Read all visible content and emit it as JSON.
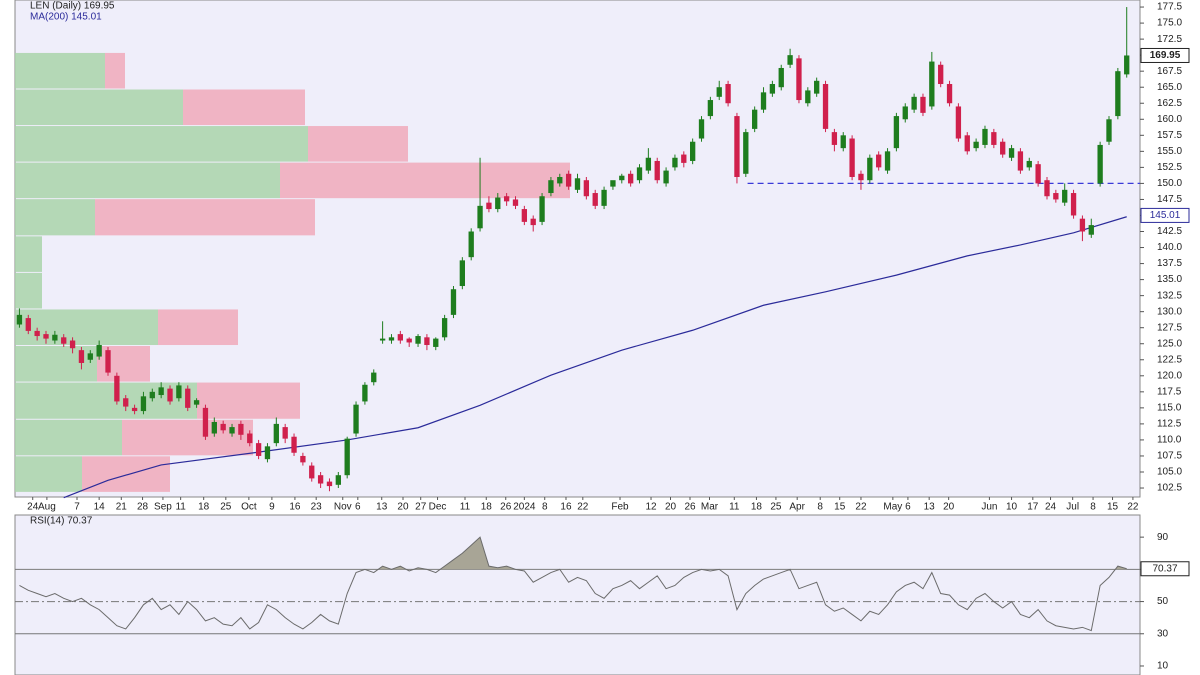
{
  "chart_data": [
    {
      "type": "candlestick",
      "title": "LEN (Daily) 169.95",
      "xlim": [
        0,
        127
      ],
      "ylim": [
        101.1,
        178.6
      ],
      "xticks": [
        {
          "value": 2.0,
          "label": "24"
        },
        {
          "value": 3.6,
          "label": "Aug"
        },
        {
          "value": 7.0,
          "label": "7"
        },
        {
          "value": 9.5,
          "label": "14"
        },
        {
          "value": 12.0,
          "label": "21"
        },
        {
          "value": 14.4,
          "label": "28"
        },
        {
          "value": 16.7,
          "label": "Sep"
        },
        {
          "value": 18.7,
          "label": "11"
        },
        {
          "value": 21.3,
          "label": "18"
        },
        {
          "value": 23.8,
          "label": "25"
        },
        {
          "value": 26.4,
          "label": "Oct"
        },
        {
          "value": 29.0,
          "label": "9"
        },
        {
          "value": 31.6,
          "label": "16"
        },
        {
          "value": 34.0,
          "label": "23"
        },
        {
          "value": 37.0,
          "label": "Nov"
        },
        {
          "value": 38.7,
          "label": "6"
        },
        {
          "value": 41.4,
          "label": "13"
        },
        {
          "value": 43.8,
          "label": "20"
        },
        {
          "value": 45.8,
          "label": "27"
        },
        {
          "value": 47.7,
          "label": "Dec"
        },
        {
          "value": 50.8,
          "label": "11"
        },
        {
          "value": 53.2,
          "label": "18"
        },
        {
          "value": 55.4,
          "label": "26"
        },
        {
          "value": 57.5,
          "label": "2024"
        },
        {
          "value": 59.8,
          "label": "8"
        },
        {
          "value": 62.2,
          "label": "16"
        },
        {
          "value": 64.1,
          "label": "22"
        },
        {
          "value": 68.3,
          "label": "Feb"
        },
        {
          "value": 71.8,
          "label": "12"
        },
        {
          "value": 74.0,
          "label": "20"
        },
        {
          "value": 76.2,
          "label": "26"
        },
        {
          "value": 78.4,
          "label": "Mar"
        },
        {
          "value": 81.2,
          "label": "11"
        },
        {
          "value": 83.7,
          "label": "18"
        },
        {
          "value": 85.9,
          "label": "25"
        },
        {
          "value": 88.3,
          "label": "Apr"
        },
        {
          "value": 90.9,
          "label": "8"
        },
        {
          "value": 93.1,
          "label": "15"
        },
        {
          "value": 95.5,
          "label": "22"
        },
        {
          "value": 99.1,
          "label": "May"
        },
        {
          "value": 100.8,
          "label": "6"
        },
        {
          "value": 103.2,
          "label": "13"
        },
        {
          "value": 105.4,
          "label": "20"
        },
        {
          "value": 110.0,
          "label": "Jun"
        },
        {
          "value": 112.5,
          "label": "10"
        },
        {
          "value": 114.9,
          "label": "17"
        },
        {
          "value": 116.9,
          "label": "24"
        },
        {
          "value": 119.4,
          "label": "Jul"
        },
        {
          "value": 121.7,
          "label": "8"
        },
        {
          "value": 123.9,
          "label": "15"
        },
        {
          "value": 126.2,
          "label": "22"
        }
      ],
      "yticks": [
        102.5,
        {
          "value": 105,
          "label": "105.0"
        },
        107.5,
        {
          "value": 110,
          "label": "110.0"
        },
        112.5,
        {
          "value": 115,
          "label": "115.0"
        },
        117.5,
        {
          "value": 120,
          "label": "120.0"
        },
        122.5,
        {
          "value": 125,
          "label": "125.0"
        },
        127.5,
        {
          "value": 130,
          "label": "130.0"
        },
        132.5,
        {
          "value": 135,
          "label": "135.0"
        },
        137.5,
        {
          "value": 140,
          "label": "140.0"
        },
        142.5,
        {
          "value": 145,
          "label": "145.0"
        },
        147.5,
        {
          "value": 150,
          "label": "150.0"
        },
        152.5,
        {
          "value": 155,
          "label": "155.0"
        },
        157.5,
        {
          "value": 160,
          "label": "160.0"
        },
        162.5,
        {
          "value": 165,
          "label": "165.0"
        },
        167.5,
        {
          "value": 170,
          "label": "170.0"
        },
        172.5,
        {
          "value": 175,
          "label": "175.0"
        },
        177.5
      ],
      "up_color": "#1e7d1e",
      "down_color": "#d0204c",
      "open": [
        128.0,
        129.0,
        127.0,
        126.5,
        125.5,
        126.0,
        125.5,
        124.0,
        122.5,
        123.0,
        124.0,
        120.0,
        116.5,
        115.0,
        114.5,
        116.5,
        117.0,
        118.0,
        116.5,
        118.0,
        115.5,
        115.0,
        111.0,
        112.5,
        111.0,
        112.5,
        111.0,
        109.5,
        107.0,
        109.5,
        112.0,
        110.5,
        107.5,
        106.0,
        104.5,
        103.5,
        103.0,
        104.5,
        111.0,
        116.0,
        119.0,
        125.5,
        125.5,
        126.5,
        125.8,
        125.0,
        126.0,
        124.5,
        126.0,
        129.5,
        134.0,
        138.5,
        143.0,
        147.0,
        146.0,
        148.0,
        147.5,
        146.0,
        144.5,
        144.0,
        148.5,
        150.0,
        151.5,
        149.0,
        150.5,
        148.5,
        146.5,
        149.5,
        150.5,
        151.5,
        150.5,
        152.0,
        153.5,
        150.0,
        152.5,
        154.5,
        153.5,
        157.0,
        160.5,
        163.5,
        165.5,
        160.5,
        151.5,
        158.5,
        161.5,
        164.0,
        165.0,
        168.5,
        169.5,
        162.5,
        164.0,
        165.5,
        158.0,
        155.5,
        157.0,
        151.5,
        150.5,
        154.5,
        152.0,
        155.5,
        160.0,
        161.5,
        163.5,
        162.0,
        168.5,
        165.5,
        162.0,
        157.5,
        155.5,
        156.0,
        158.0,
        156.5,
        154.0,
        155.0,
        152.5,
        153.0,
        150.5,
        148.5,
        147.0,
        148.5,
        144.5,
        142.0,
        150.0,
        156.5,
        160.5,
        167.0
      ],
      "high": [
        130.5,
        129.5,
        127.5,
        127.0,
        127.0,
        126.5,
        126.0,
        124.5,
        124.0,
        125.5,
        124.5,
        120.5,
        117.0,
        115.5,
        117.5,
        118.0,
        119.0,
        118.5,
        119.0,
        118.5,
        116.5,
        115.5,
        113.5,
        113.0,
        112.5,
        113.0,
        111.5,
        110.0,
        109.5,
        113.5,
        112.5,
        111.0,
        108.0,
        106.5,
        105.0,
        104.0,
        105.0,
        110.5,
        116.0,
        119.0,
        121.0,
        128.5,
        126.5,
        127.0,
        126.0,
        126.5,
        126.5,
        126.0,
        129.5,
        134.0,
        138.5,
        143.0,
        154.0,
        148.0,
        148.5,
        148.5,
        148.0,
        146.5,
        145.0,
        148.5,
        151.0,
        151.5,
        152.0,
        151.5,
        151.0,
        149.0,
        149.5,
        150.0,
        151.5,
        152.0,
        153.0,
        155.5,
        154.0,
        152.5,
        154.5,
        155.0,
        157.0,
        160.5,
        163.5,
        166.0,
        166.0,
        161.0,
        158.5,
        162.0,
        165.0,
        166.0,
        168.5,
        171.0,
        170.0,
        165.0,
        166.5,
        166.0,
        158.5,
        158.0,
        157.5,
        152.0,
        154.5,
        155.0,
        155.5,
        161.0,
        162.5,
        164.0,
        164.0,
        170.5,
        169.0,
        166.0,
        162.5,
        158.0,
        157.0,
        159.0,
        158.5,
        157.0,
        156.0,
        155.5,
        154.0,
        153.5,
        151.0,
        149.0,
        150.0,
        149.0,
        145.0,
        144.5,
        156.5,
        160.5,
        168.0,
        177.5
      ],
      "low": [
        127.5,
        126.5,
        125.5,
        125.0,
        125.0,
        124.5,
        123.5,
        121.0,
        122.0,
        122.5,
        120.0,
        115.5,
        114.5,
        114.0,
        114.0,
        116.0,
        116.5,
        115.5,
        116.0,
        114.5,
        115.0,
        110.0,
        110.5,
        111.0,
        110.5,
        110.0,
        109.0,
        107.0,
        106.5,
        109.0,
        109.5,
        107.5,
        106.0,
        103.5,
        102.5,
        102.0,
        102.5,
        104.0,
        110.5,
        115.5,
        118.5,
        125.0,
        125.0,
        125.0,
        124.5,
        124.5,
        124.0,
        124.0,
        125.5,
        129.0,
        133.5,
        138.0,
        142.5,
        145.5,
        145.5,
        146.5,
        146.0,
        143.5,
        142.5,
        143.5,
        148.0,
        149.5,
        149.0,
        148.5,
        147.5,
        146.0,
        146.0,
        149.0,
        150.0,
        149.5,
        150.0,
        151.5,
        150.0,
        149.5,
        152.0,
        152.5,
        153.0,
        156.5,
        160.0,
        163.0,
        162.0,
        150.0,
        151.0,
        158.0,
        161.0,
        163.5,
        164.5,
        168.0,
        162.5,
        162.0,
        163.5,
        158.0,
        155.0,
        155.0,
        150.5,
        149.0,
        150.0,
        152.0,
        151.5,
        155.0,
        159.5,
        161.0,
        160.5,
        161.5,
        165.0,
        162.0,
        156.5,
        154.5,
        155.0,
        155.5,
        155.5,
        154.0,
        153.5,
        151.5,
        152.0,
        149.5,
        147.5,
        147.0,
        146.5,
        144.5,
        141.0,
        141.5,
        149.5,
        156.0,
        160.0,
        166.5
      ],
      "close": [
        129.5,
        127.0,
        126.2,
        125.8,
        126.4,
        125.0,
        124.3,
        122.0,
        123.5,
        124.8,
        120.5,
        116.0,
        115.2,
        114.5,
        116.8,
        117.5,
        118.2,
        116.0,
        118.5,
        115.0,
        116.2,
        110.5,
        112.8,
        111.5,
        112.0,
        110.8,
        109.5,
        107.5,
        109.0,
        112.5,
        110.2,
        108.0,
        106.5,
        104.0,
        103.2,
        102.8,
        104.5,
        110.2,
        115.5,
        118.6,
        120.5,
        125.8,
        126.0,
        125.5,
        125.2,
        126.2,
        124.8,
        125.8,
        129.0,
        133.5,
        138.0,
        142.5,
        146.5,
        146.0,
        147.8,
        147.2,
        146.5,
        144.0,
        143.5,
        148.0,
        150.5,
        151.0,
        149.5,
        150.8,
        148.0,
        146.5,
        149.0,
        150.5,
        151.2,
        150.0,
        152.5,
        154.0,
        150.5,
        152.0,
        154.0,
        153.2,
        156.5,
        160.0,
        163.0,
        165.0,
        162.5,
        151.0,
        158.0,
        161.5,
        164.2,
        165.5,
        168.0,
        170.0,
        163.0,
        164.5,
        166.0,
        158.5,
        156.0,
        157.5,
        151.0,
        150.5,
        154.0,
        152.5,
        155.0,
        160.5,
        162.0,
        163.5,
        161.0,
        169.0,
        165.5,
        162.5,
        157.0,
        155.0,
        156.5,
        158.5,
        156.0,
        154.5,
        155.5,
        152.0,
        153.5,
        150.0,
        148.0,
        147.5,
        149.0,
        145.0,
        142.5,
        143.5,
        156.0,
        160.0,
        167.5,
        169.95
      ],
      "last_price": 169.95,
      "ma": {
        "name": "MA(200) 145.01",
        "color": "#2b2b9a",
        "last": 145.01,
        "x": [
          5.5,
          10.5,
          16.5,
          27.5,
          37.5,
          45.5,
          52.5,
          60.5,
          68.5,
          76.5,
          84.5,
          91.5,
          99.5,
          107.5,
          113.5,
          119.5,
          125.5
        ],
        "values": [
          101.0,
          103.7,
          106.1,
          108.1,
          110.0,
          111.9,
          115.4,
          120.1,
          124.0,
          127.1,
          131.0,
          133.1,
          135.7,
          138.7,
          140.4,
          142.3,
          144.8
        ]
      },
      "hline": {
        "value": 150.0,
        "from": 82.7,
        "to": 127,
        "color": "#3a3ad8"
      },
      "volume_by_price": {
        "bins": [
          101.9,
          107.6,
          113.3,
          119.1,
          124.8,
          130.5,
          136.2,
          141.9,
          147.7,
          153.4,
          159.1,
          164.8,
          170.5
        ],
        "up": [
          67,
          107,
          182,
          82,
          143,
          27,
          27,
          80,
          265,
          293,
          168,
          90
        ],
        "down": [
          88,
          131,
          103,
          53,
          80,
          0,
          0,
          220,
          290,
          100,
          122,
          20
        ],
        "up_color": "#a9d3a9",
        "down_color": "#f0a9ba"
      }
    },
    {
      "type": "line",
      "title": "RSI(14) 70.37",
      "color": "#6b6b6b",
      "fill": "#a8a596",
      "xlim": [
        0,
        127
      ],
      "ylim": [
        4.4,
        103.75
      ],
      "yticks": [
        90,
        70,
        50,
        30,
        10
      ],
      "levels": [
        {
          "value": 70,
          "style": "solid"
        },
        {
          "value": 50,
          "style": "dashdot"
        },
        {
          "value": 30,
          "style": "solid"
        }
      ],
      "last": 70.37,
      "values": [
        60,
        57,
        55,
        53,
        55,
        52,
        50,
        52,
        48,
        45,
        40,
        35,
        33,
        40,
        48,
        52,
        45,
        48,
        42,
        50,
        45,
        38,
        40,
        36,
        35,
        40,
        33,
        37,
        48,
        45,
        40,
        36,
        33,
        37,
        42,
        38,
        36,
        55,
        68,
        70,
        68,
        72,
        70,
        72,
        69,
        71,
        70,
        68,
        72,
        76,
        80,
        85,
        90,
        72,
        71,
        72,
        70,
        69,
        62,
        65,
        68,
        70,
        62,
        65,
        63,
        55,
        52,
        58,
        60,
        63,
        58,
        62,
        66,
        58,
        60,
        65,
        68,
        70,
        69,
        70,
        66,
        45,
        55,
        60,
        64,
        66,
        68,
        70,
        58,
        60,
        62,
        48,
        44,
        46,
        42,
        38,
        44,
        42,
        48,
        56,
        60,
        62,
        58,
        68,
        55,
        54,
        48,
        45,
        52,
        55,
        50,
        46,
        50,
        42,
        40,
        45,
        38,
        35,
        34,
        33,
        34,
        32,
        60,
        65,
        72,
        70.37
      ]
    }
  ]
}
